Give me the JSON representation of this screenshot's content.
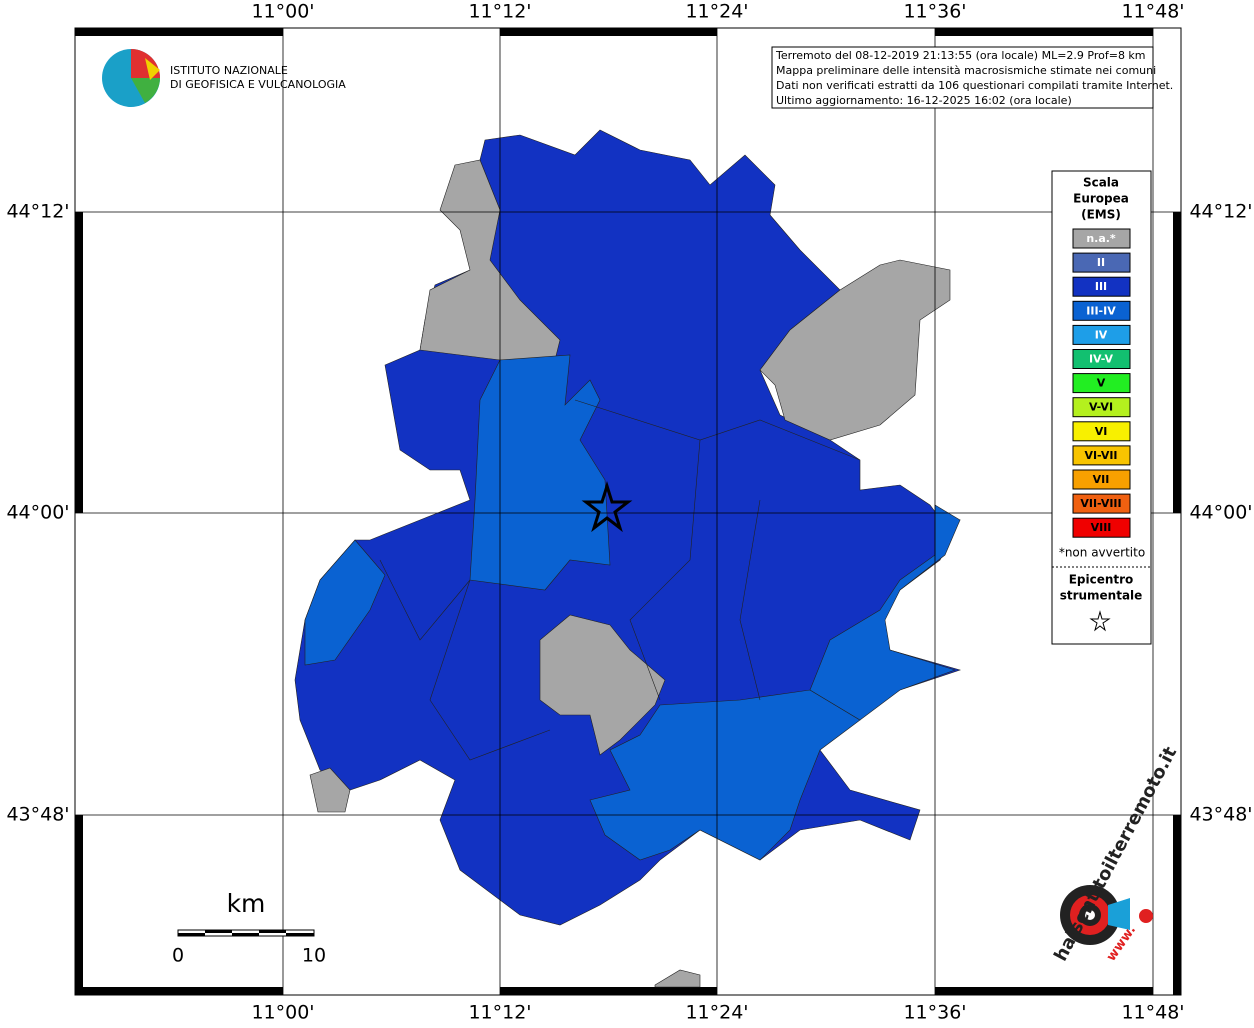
{
  "map": {
    "lon_labels": [
      "11°00'",
      "11°12'",
      "11°24'",
      "11°36'",
      "11°48'"
    ],
    "lat_labels": [
      "44°12'",
      "44°00'",
      "43°48'"
    ],
    "info_box": [
      "Terremoto del 08-12-2019 21:13:55 (ora locale) ML=2.9 Prof=8 km",
      "Mappa preliminare delle intensità macrosismiche stimate nei comuni",
      "Dati non verificati estratti da 106 questionari compilati tramite Internet.",
      "Ultimo aggiornamento: 16-12-2025 16:02 (ora locale)"
    ],
    "institute": [
      "ISTITUTO NAZIONALE",
      "DI GEOFISICA E VULCANOLOGIA"
    ],
    "legend": {
      "title": [
        "Scala",
        "Europea",
        "(EMS)"
      ],
      "entries": [
        {
          "label": "n.a.*",
          "color": "#a6a6a6"
        },
        {
          "label": "II",
          "color": "#4a68b4"
        },
        {
          "label": "III",
          "color": "#1232c2"
        },
        {
          "label": "III-IV",
          "color": "#0a62d2"
        },
        {
          "label": "IV",
          "color": "#1e9ee8"
        },
        {
          "label": "IV-V",
          "color": "#12c070"
        },
        {
          "label": "V",
          "color": "#22ee22"
        },
        {
          "label": "V-VI",
          "color": "#b4f01e"
        },
        {
          "label": "VI",
          "color": "#f8f000"
        },
        {
          "label": "VI-VII",
          "color": "#f8c400"
        },
        {
          "label": "VII",
          "color": "#f8a000"
        },
        {
          "label": "VII-VIII",
          "color": "#f06010"
        },
        {
          "label": "VIII",
          "color": "#f00000"
        }
      ],
      "note": "*non avvertito",
      "epicenter": [
        "Epicentro",
        "strumentale"
      ]
    },
    "scale_bar": {
      "unit": "km",
      "labels": [
        "0",
        "10"
      ]
    },
    "badge": {
      "site": "haisentitoilterremoto.it",
      "prefix": "www."
    }
  }
}
